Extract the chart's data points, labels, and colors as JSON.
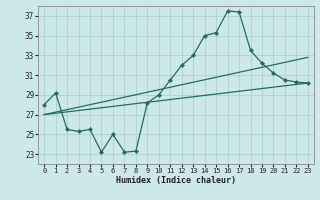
{
  "xlabel": "Humidex (Indice chaleur)",
  "xlim": [
    -0.5,
    23.5
  ],
  "ylim": [
    22.0,
    38.0
  ],
  "yticks": [
    23,
    25,
    27,
    29,
    31,
    33,
    35,
    37
  ],
  "xticks": [
    0,
    1,
    2,
    3,
    4,
    5,
    6,
    7,
    8,
    9,
    10,
    11,
    12,
    13,
    14,
    15,
    16,
    17,
    18,
    19,
    20,
    21,
    22,
    23
  ],
  "bg_color": "#cde8ea",
  "grid_color": "#b0d0d3",
  "line_color": "#236b61",
  "series1_x": [
    0,
    1,
    2,
    3,
    4,
    5,
    6,
    7,
    8,
    9,
    10,
    11,
    12,
    13,
    14,
    15,
    16,
    17,
    18,
    19,
    20,
    21,
    22,
    23
  ],
  "series1_y": [
    28.0,
    29.2,
    25.5,
    25.3,
    25.5,
    23.2,
    25.0,
    23.2,
    23.3,
    28.2,
    29.0,
    30.5,
    32.0,
    33.0,
    35.0,
    35.3,
    37.5,
    37.4,
    33.5,
    32.2,
    31.2,
    30.5,
    30.3,
    30.2
  ],
  "line2_x": [
    0,
    23
  ],
  "line2_y": [
    27.0,
    30.2
  ],
  "line3_x": [
    0,
    23
  ],
  "line3_y": [
    27.0,
    32.8
  ],
  "lw": 0.9,
  "ms": 2.2
}
